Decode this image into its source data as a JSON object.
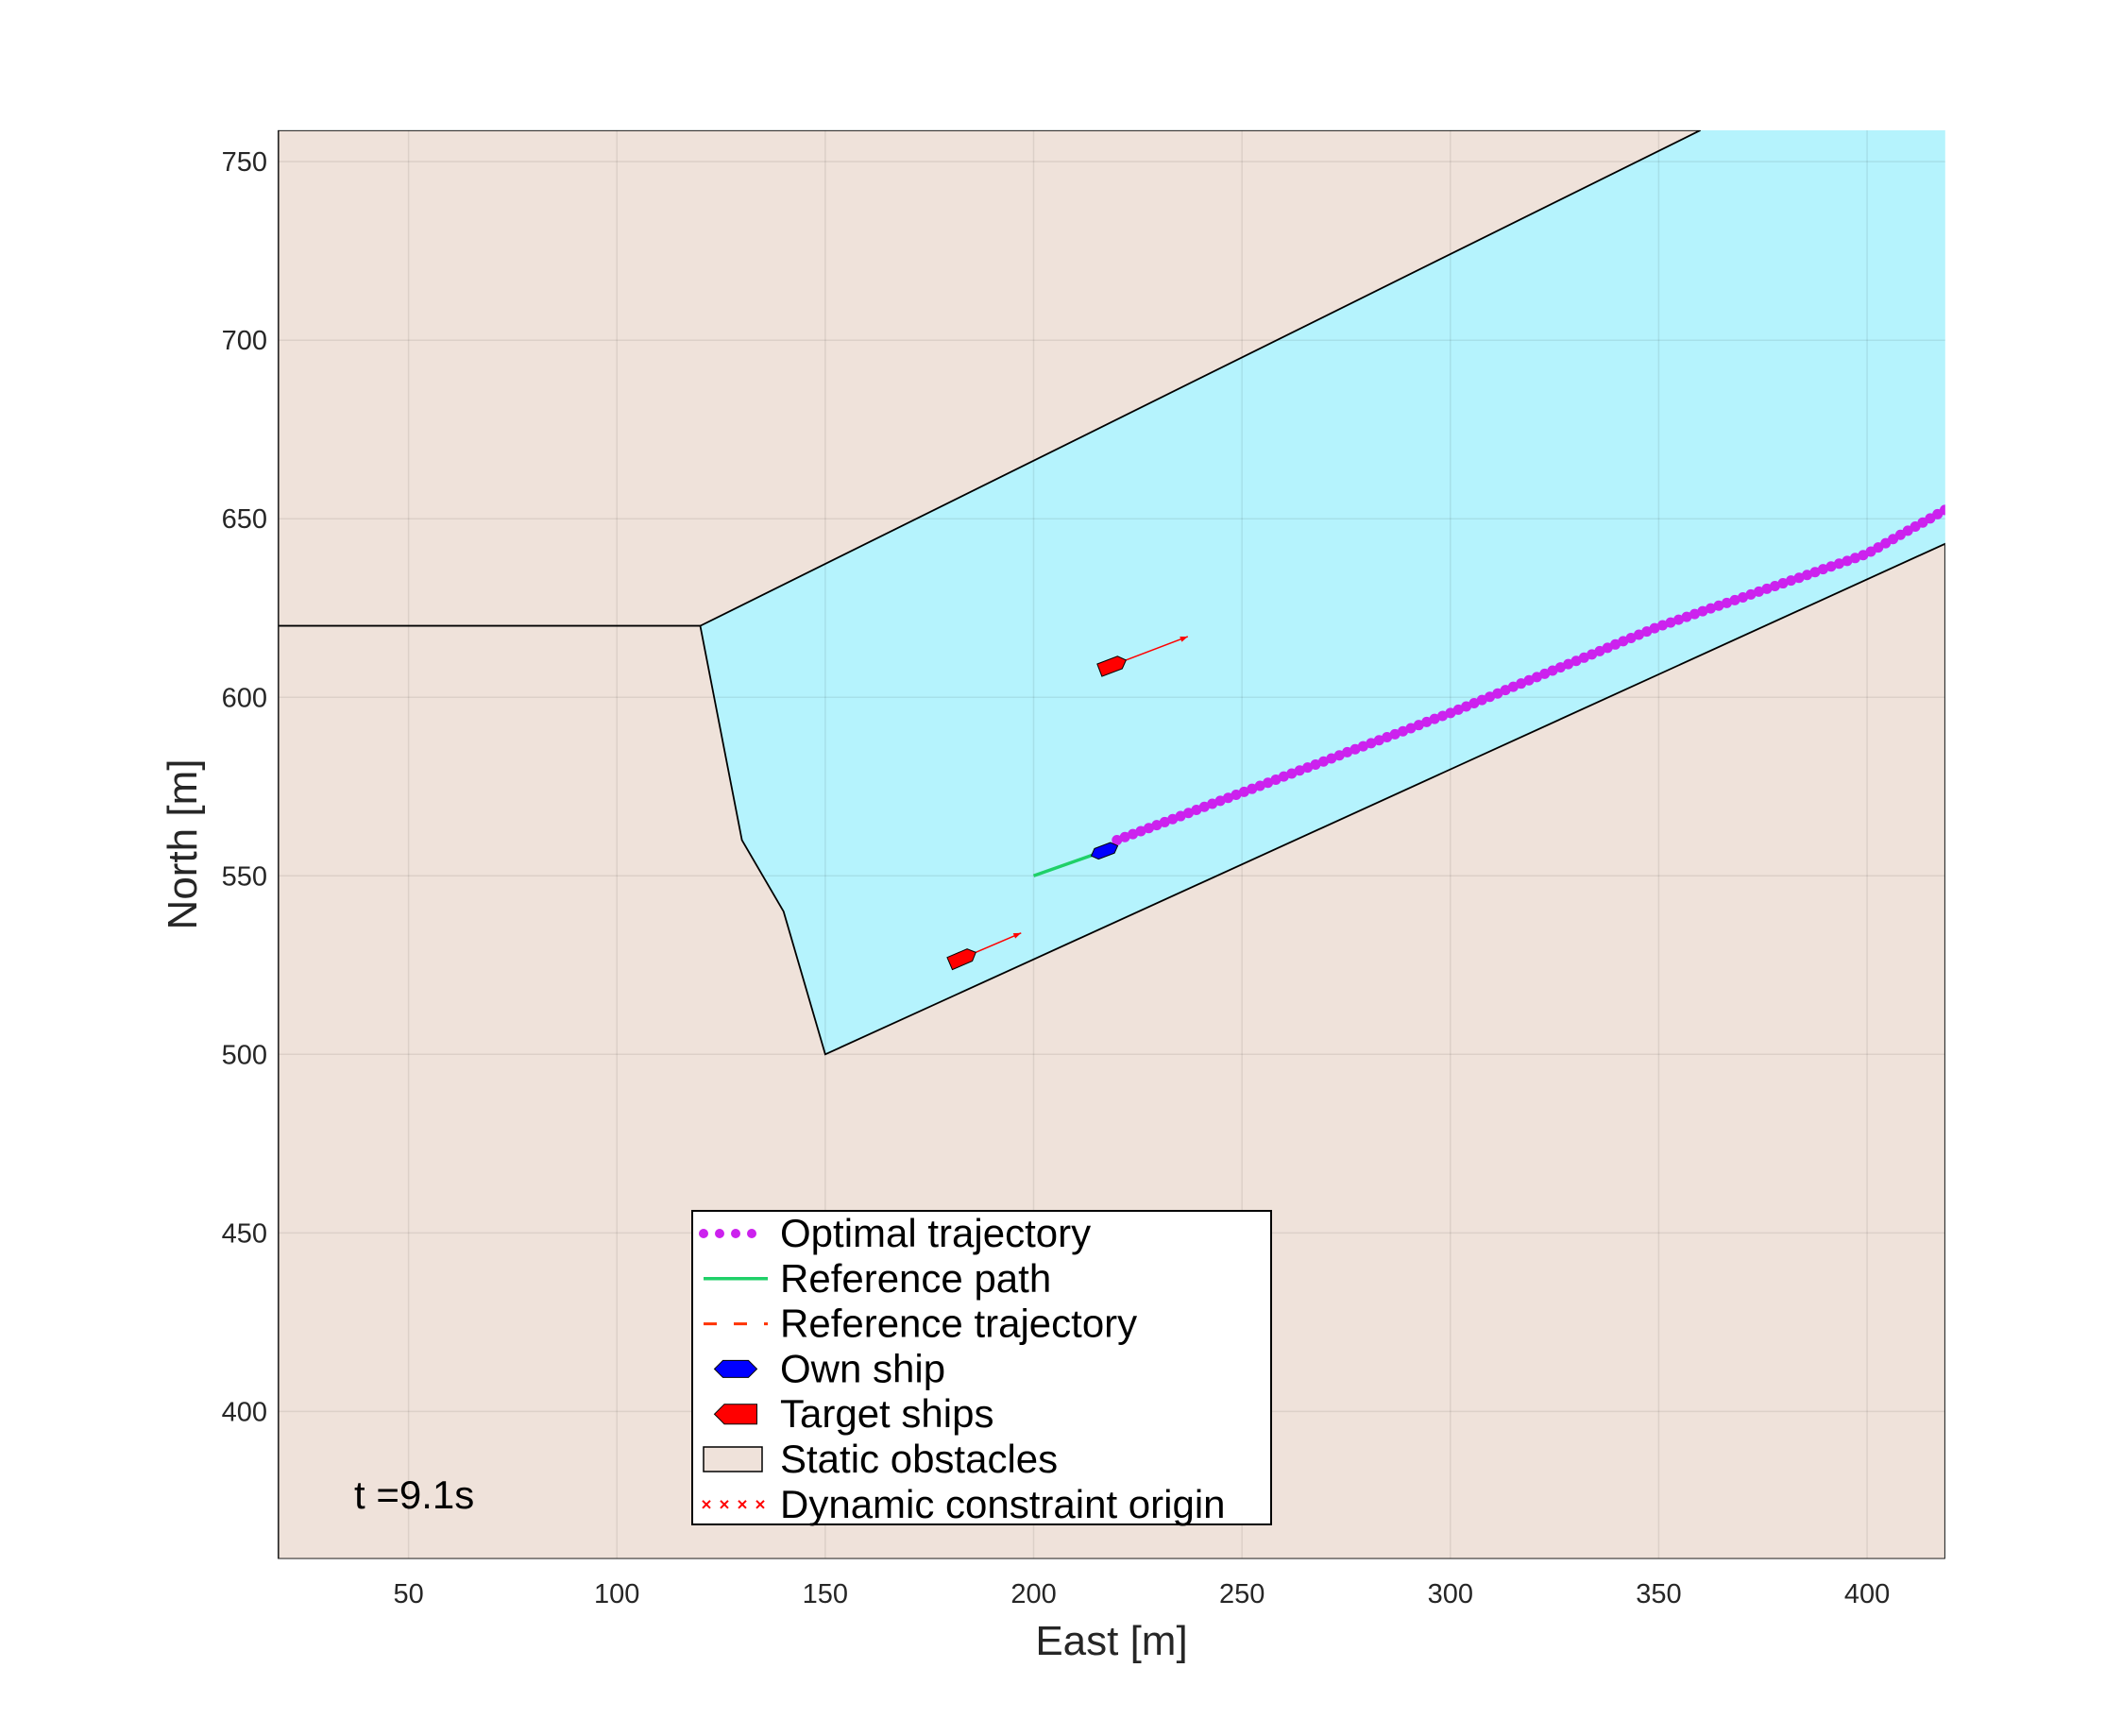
{
  "chart_data": {
    "type": "trajectory",
    "xlabel": "East [m]",
    "ylabel": "North [m]",
    "annotation": "t =9.1s",
    "xlim": [
      18.75,
      418.75
    ],
    "ylim": [
      358.7,
      758.8
    ],
    "xticks": [
      50,
      100,
      150,
      200,
      250,
      300,
      350,
      400
    ],
    "yticks": [
      400,
      450,
      500,
      550,
      600,
      650,
      700,
      750
    ],
    "grid": true,
    "background": "#b5f3fd",
    "legend": "south",
    "series": [
      {
        "name": "Optimal trajectory",
        "color": "#cc22ee",
        "style": "dots",
        "x": [
          220,
          225,
          230,
          235,
          240,
          245,
          250,
          255,
          260,
          265,
          270,
          275,
          280,
          285,
          290,
          295,
          300,
          305,
          310,
          315,
          320,
          325,
          330,
          335,
          340,
          345,
          350,
          355,
          360,
          365,
          370,
          375,
          380,
          385,
          390,
          395,
          400,
          405,
          410,
          415,
          418.75
        ],
        "y": [
          560.0,
          562.2,
          564.4,
          566.6,
          568.9,
          571.1,
          573.3,
          575.5,
          577.8,
          580.0,
          582.2,
          584.5,
          586.7,
          588.9,
          591.1,
          593.4,
          595.6,
          598.0,
          600.4,
          602.9,
          605.3,
          607.7,
          610.1,
          612.5,
          615.0,
          617.4,
          619.8,
          621.8,
          623.9,
          625.9,
          627.9,
          630.0,
          632.0,
          634.0,
          636.1,
          638.1,
          640.2,
          643.5,
          646.8,
          650.0,
          652.5
        ]
      },
      {
        "name": "Reference path",
        "color": "#1fd068",
        "style": "line",
        "x": [
          200,
          217
        ],
        "y": [
          550,
          557
        ]
      },
      {
        "name": "Reference trajectory",
        "color": "#ff3300",
        "style": "dashed",
        "x": [],
        "y": []
      },
      {
        "name": "Own ship",
        "color": "#0000ff",
        "style": "ownship",
        "x": [
          217
        ],
        "y": [
          557
        ],
        "heading": [
          24
        ]
      },
      {
        "name": "Target ships",
        "color": "#ff0000",
        "style": "target",
        "x": [
          183,
          219
        ],
        "y": [
          527,
          609
        ],
        "arrow_x": [
          197,
          237
        ],
        "arrow_y": [
          534,
          617
        ]
      },
      {
        "name": "Static obstacles",
        "color": "#efe2da",
        "style": "polygon",
        "polygons": [
          {
            "x": [
              18.75,
              120,
              360,
              18.75
            ],
            "y": [
              620,
              620,
              758.8,
              758.8
            ]
          },
          {
            "x": [
              18.75,
              120,
              130,
              140,
              150,
              418.75,
              418.75,
              18.75
            ],
            "y": [
              620,
              620,
              560,
              540,
              500,
              643,
              358.7,
              358.7
            ]
          }
        ]
      },
      {
        "name": "Dynamic constraint origin",
        "color": "#ff0000",
        "style": "cross",
        "x": [],
        "y": []
      }
    ]
  }
}
